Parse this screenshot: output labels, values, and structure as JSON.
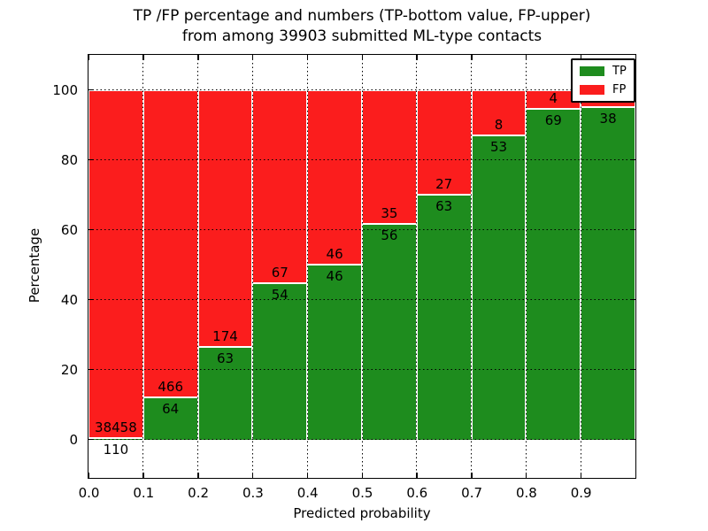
{
  "title": {
    "line1": "TP /FP percentage and numbers (TP-bottom value, FP-upper)",
    "line2": "from among 39903 submitted ML-type contacts"
  },
  "chart_data": {
    "type": "bar",
    "stacked": true,
    "title": "TP /FP percentage and numbers (TP-bottom value, FP-upper) from among 39903 submitted ML-type contacts",
    "xlabel": "Predicted probability",
    "ylabel": "Percentage",
    "x_tick_labels": [
      "0.0",
      "0.1",
      "0.2",
      "0.3",
      "0.4",
      "0.5",
      "0.6",
      "0.7",
      "0.8",
      "0.9"
    ],
    "y_ticks": [
      0,
      20,
      40,
      60,
      80,
      100
    ],
    "xlim": [
      0.0,
      1.0
    ],
    "ylim": [
      -11,
      110
    ],
    "grid": {
      "style": "dotted",
      "axes": "both"
    },
    "colors": {
      "tp": "#1e8c1e",
      "fp": "#fb1d1d"
    },
    "legend": {
      "position": "upper right",
      "entries": [
        {
          "label": "TP",
          "color": "#1e8c1e"
        },
        {
          "label": "FP",
          "color": "#fb1d1d"
        }
      ]
    },
    "bins": [
      {
        "x_range": [
          0.0,
          0.1
        ],
        "tp": 110,
        "fp": 38458,
        "tp_pct": 0.29
      },
      {
        "x_range": [
          0.1,
          0.2
        ],
        "tp": 64,
        "fp": 466,
        "tp_pct": 12.08
      },
      {
        "x_range": [
          0.2,
          0.3
        ],
        "tp": 63,
        "fp": 174,
        "tp_pct": 26.58
      },
      {
        "x_range": [
          0.3,
          0.4
        ],
        "tp": 54,
        "fp": 67,
        "tp_pct": 44.63
      },
      {
        "x_range": [
          0.4,
          0.5
        ],
        "tp": 46,
        "fp": 46,
        "tp_pct": 50.0
      },
      {
        "x_range": [
          0.5,
          0.6
        ],
        "tp": 56,
        "fp": 35,
        "tp_pct": 61.54
      },
      {
        "x_range": [
          0.6,
          0.7
        ],
        "tp": 63,
        "fp": 27,
        "tp_pct": 70.0
      },
      {
        "x_range": [
          0.7,
          0.8
        ],
        "tp": 53,
        "fp": 8,
        "tp_pct": 86.89
      },
      {
        "x_range": [
          0.8,
          0.9
        ],
        "tp": 69,
        "fp": 4,
        "tp_pct": 94.52
      },
      {
        "x_range": [
          0.9,
          1.0
        ],
        "tp": 38,
        "fp": null,
        "tp_pct": 95.0,
        "note": "FP count label occluded by legend box"
      }
    ]
  }
}
